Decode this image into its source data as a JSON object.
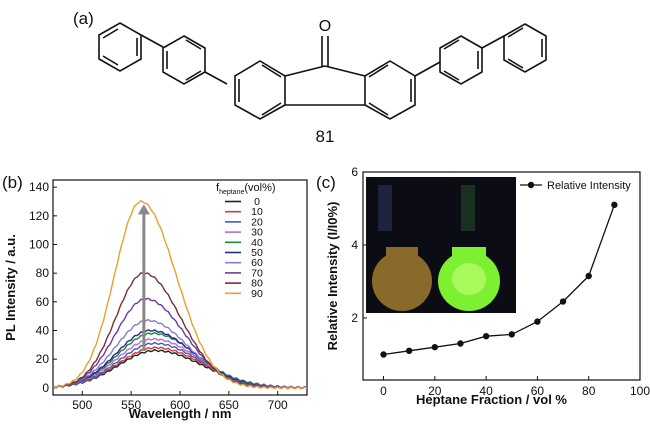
{
  "panel_labels": {
    "a": "(a)",
    "b": "(b)",
    "c": "(c)"
  },
  "compound_number": "81",
  "carbonyl_atom": "O",
  "chart_data": [
    {
      "type": "line",
      "panel": "(b)",
      "xlabel": "Wavelength / nm",
      "ylabel": "PL Intensity / a.u.",
      "xlim": [
        470,
        730
      ],
      "ylim": [
        -5,
        145
      ],
      "xticks": [
        500,
        550,
        600,
        650,
        700
      ],
      "yticks": [
        0,
        20,
        40,
        60,
        80,
        100,
        120,
        140
      ],
      "legend_title": {
        "symbol": "f",
        "subscript": "heptane",
        "rest": "(vol%)"
      },
      "legend_position": "top-right",
      "series": [
        {
          "name": "0",
          "color": "#222222",
          "peak_x": 575,
          "peak_y": 26,
          "sigma_l": 38,
          "sigma_r": 48
        },
        {
          "name": "10",
          "color": "#d23c3c",
          "peak_x": 575,
          "peak_y": 28,
          "sigma_l": 38,
          "sigma_r": 48
        },
        {
          "name": "20",
          "color": "#3b5cc4",
          "peak_x": 574,
          "peak_y": 31,
          "sigma_l": 37,
          "sigma_r": 47
        },
        {
          "name": "30",
          "color": "#c66ab8",
          "peak_x": 573,
          "peak_y": 34,
          "sigma_l": 37,
          "sigma_r": 46
        },
        {
          "name": "40",
          "color": "#1e8a3c",
          "peak_x": 572,
          "peak_y": 38,
          "sigma_l": 36,
          "sigma_r": 45
        },
        {
          "name": "50",
          "color": "#1f2f8f",
          "peak_x": 570,
          "peak_y": 40,
          "sigma_l": 35,
          "sigma_r": 44
        },
        {
          "name": "60",
          "color": "#8a7ad6",
          "peak_x": 567,
          "peak_y": 47,
          "sigma_l": 33,
          "sigma_r": 42
        },
        {
          "name": "70",
          "color": "#6a3ca0",
          "peak_x": 565,
          "peak_y": 62,
          "sigma_l": 31,
          "sigma_r": 40
        },
        {
          "name": "80",
          "color": "#7a2e3a",
          "peak_x": 563,
          "peak_y": 80,
          "sigma_l": 29,
          "sigma_r": 38
        },
        {
          "name": "90",
          "color": "#e8a030",
          "peak_x": 560,
          "peak_y": 130,
          "sigma_l": 27,
          "sigma_r": 36
        }
      ],
      "arrow": {
        "from": [
          563,
          26
        ],
        "to": [
          563,
          128
        ],
        "color": "#888888"
      }
    },
    {
      "type": "scatter",
      "panel": "(c)",
      "xlabel": "Heptane Fraction / vol %",
      "ylabel": "Relative Intensity (I/I0%)",
      "xlim": [
        -8,
        100
      ],
      "ylim": [
        0.3,
        6
      ],
      "xticks": [
        0,
        20,
        40,
        60,
        80,
        100
      ],
      "yticks": [
        2,
        4,
        6
      ],
      "legend_position": "top-right",
      "series": [
        {
          "name": "Relative Intensity",
          "color": "#111111",
          "x": [
            0,
            10,
            20,
            30,
            40,
            50,
            60,
            70,
            80,
            90
          ],
          "y": [
            1.0,
            1.1,
            1.2,
            1.3,
            1.5,
            1.55,
            1.9,
            2.45,
            3.15,
            5.1
          ]
        }
      ]
    }
  ]
}
